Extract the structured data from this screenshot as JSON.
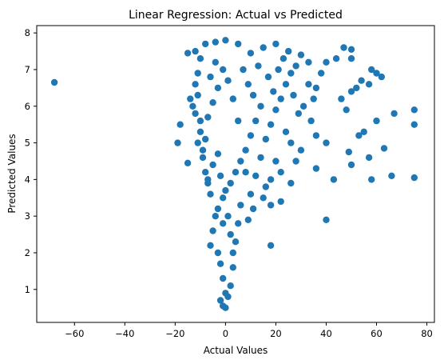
{
  "chart_data": {
    "type": "scatter",
    "title": "Linear Regression: Actual vs Predicted",
    "xlabel": "Actual Values",
    "ylabel": "Predicted Values",
    "xlim": [
      -75,
      83
    ],
    "ylim": [
      0.1,
      8.2
    ],
    "x_ticks": [
      -60,
      -40,
      -20,
      0,
      20,
      40,
      60,
      80
    ],
    "y_ticks": [
      1,
      2,
      3,
      4,
      5,
      6,
      7,
      8
    ],
    "grid": false,
    "legend": "none",
    "marker_color": "#1f77b4",
    "series": [
      {
        "points": [
          [
            -68.0,
            6.65
          ],
          [
            -18.0,
            5.5
          ],
          [
            -19.0,
            5.0
          ],
          [
            -15.0,
            4.45
          ],
          [
            -14.0,
            6.2
          ],
          [
            -15.0,
            7.45
          ],
          [
            -12.0,
            7.5
          ],
          [
            -13.0,
            6.0
          ],
          [
            -10.0,
            5.6
          ],
          [
            -8.0,
            5.1
          ],
          [
            -9.0,
            4.8
          ],
          [
            -7.0,
            3.9
          ],
          [
            -6.0,
            3.6
          ],
          [
            -4.0,
            3.0
          ],
          [
            -5.0,
            2.6
          ],
          [
            -6.0,
            2.2
          ],
          [
            -3.0,
            2.0
          ],
          [
            -2.0,
            1.7
          ],
          [
            -1.0,
            1.3
          ],
          [
            0.0,
            0.9
          ],
          [
            -2.0,
            0.7
          ],
          [
            -1.0,
            0.55
          ],
          [
            0.0,
            0.5
          ],
          [
            1.0,
            0.8
          ],
          [
            2.0,
            1.1
          ],
          [
            3.0,
            1.6
          ],
          [
            4.0,
            2.3
          ],
          [
            5.0,
            2.8
          ],
          [
            6.0,
            3.3
          ],
          [
            18.0,
            2.2
          ],
          [
            40.0,
            2.9
          ],
          [
            43.0,
            4.0
          ],
          [
            50.0,
            4.4
          ],
          [
            49.0,
            4.75
          ],
          [
            58.0,
            4.0
          ],
          [
            66.0,
            4.1
          ],
          [
            75.0,
            4.05
          ],
          [
            57.0,
            4.6
          ],
          [
            63.0,
            4.85
          ],
          [
            60.0,
            5.6
          ],
          [
            75.0,
            5.5
          ],
          [
            75.0,
            5.9
          ],
          [
            67.0,
            5.8
          ],
          [
            55.0,
            5.3
          ],
          [
            53.0,
            5.2
          ],
          [
            48.0,
            5.9
          ],
          [
            46.0,
            6.2
          ],
          [
            50.0,
            6.4
          ],
          [
            52.0,
            6.5
          ],
          [
            54.0,
            6.7
          ],
          [
            57.0,
            6.6
          ],
          [
            60.0,
            6.9
          ],
          [
            62.0,
            6.8
          ],
          [
            58.0,
            7.0
          ],
          [
            50.0,
            7.3
          ],
          [
            47.0,
            7.6
          ],
          [
            50.0,
            7.55
          ],
          [
            44.0,
            7.3
          ],
          [
            40.0,
            7.2
          ],
          [
            38.0,
            6.9
          ],
          [
            36.0,
            6.5
          ],
          [
            35.0,
            6.2
          ],
          [
            34.0,
            5.6
          ],
          [
            36.0,
            5.2
          ],
          [
            40.0,
            5.0
          ],
          [
            36.0,
            4.3
          ],
          [
            30.0,
            4.8
          ],
          [
            28.0,
            4.5
          ],
          [
            26.0,
            3.9
          ],
          [
            22.0,
            3.4
          ],
          [
            18.0,
            3.3
          ],
          [
            16.0,
            3.8
          ],
          [
            25.0,
            7.5
          ],
          [
            30.0,
            7.4
          ],
          [
            33.0,
            7.2
          ],
          [
            20.0,
            7.7
          ],
          [
            15.0,
            7.6
          ],
          [
            10.0,
            7.45
          ],
          [
            5.0,
            7.7
          ],
          [
            0.0,
            7.8
          ],
          [
            -4.0,
            7.75
          ],
          [
            -8.0,
            7.7
          ],
          [
            -10.0,
            7.3
          ],
          [
            -11.0,
            6.9
          ],
          [
            -12.0,
            6.6
          ],
          [
            -11.0,
            6.3
          ],
          [
            -12.0,
            5.8
          ],
          [
            -10.0,
            5.3
          ],
          [
            -11.0,
            5.0
          ],
          [
            -9.0,
            4.6
          ],
          [
            -8.0,
            4.2
          ],
          [
            -7.0,
            4.0
          ],
          [
            -5.0,
            4.4
          ],
          [
            -3.0,
            4.7
          ],
          [
            -2.0,
            4.1
          ],
          [
            -1.0,
            3.5
          ],
          [
            1.0,
            3.0
          ],
          [
            2.0,
            2.5
          ],
          [
            3.0,
            2.0
          ],
          [
            -1.0,
            2.8
          ],
          [
            -3.0,
            3.2
          ],
          [
            8.0,
            4.2
          ],
          [
            10.0,
            3.6
          ],
          [
            12.0,
            4.1
          ],
          [
            14.0,
            4.6
          ],
          [
            16.0,
            5.1
          ],
          [
            18.0,
            5.5
          ],
          [
            20.0,
            5.9
          ],
          [
            22.0,
            6.2
          ],
          [
            24.0,
            6.6
          ],
          [
            26.0,
            6.9
          ],
          [
            28.0,
            7.1
          ],
          [
            14.0,
            6.0
          ],
          [
            12.0,
            5.6
          ],
          [
            10.0,
            5.2
          ],
          [
            8.0,
            4.8
          ],
          [
            6.0,
            4.5
          ],
          [
            4.0,
            4.2
          ],
          [
            2.0,
            3.9
          ],
          [
            0.0,
            3.7
          ],
          [
            5.0,
            5.6
          ],
          [
            3.0,
            6.2
          ],
          [
            1.0,
            6.7
          ],
          [
            -1.0,
            7.0
          ],
          [
            -3.0,
            6.5
          ],
          [
            -5.0,
            6.1
          ],
          [
            -7.0,
            5.7
          ],
          [
            -6.0,
            6.8
          ],
          [
            -4.0,
            7.2
          ],
          [
            7.0,
            7.0
          ],
          [
            9.0,
            6.6
          ],
          [
            11.0,
            6.3
          ],
          [
            13.0,
            7.1
          ],
          [
            17.0,
            6.8
          ],
          [
            19.0,
            6.4
          ],
          [
            21.0,
            7.0
          ],
          [
            23.0,
            7.3
          ],
          [
            27.0,
            6.3
          ],
          [
            29.0,
            5.8
          ],
          [
            31.0,
            6.0
          ],
          [
            33.0,
            6.6
          ],
          [
            24.0,
            5.3
          ],
          [
            26.0,
            5.0
          ],
          [
            20.0,
            4.5
          ],
          [
            22.0,
            4.2
          ],
          [
            18.0,
            4.0
          ],
          [
            15.0,
            3.5
          ],
          [
            11.0,
            3.2
          ],
          [
            9.0,
            2.9
          ]
        ]
      }
    ]
  }
}
